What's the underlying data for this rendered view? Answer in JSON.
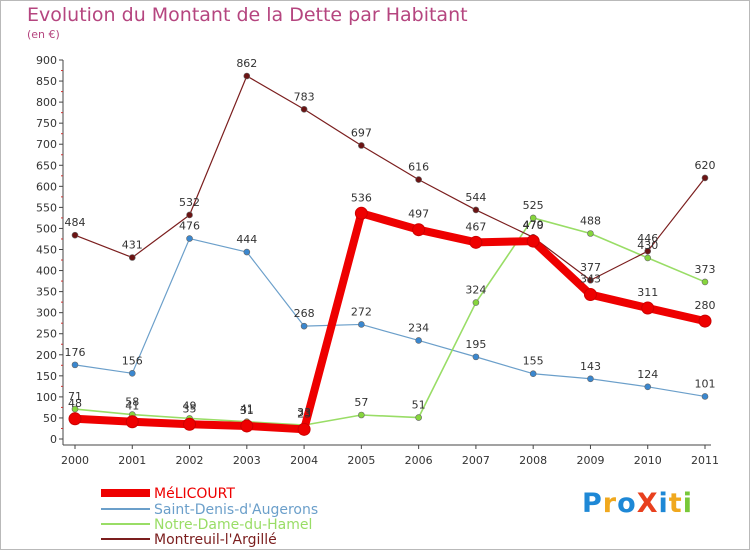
{
  "chart_data": {
    "type": "line",
    "title": "Evolution du Montant de la Dette par Habitant",
    "subtitle": "(en €)",
    "x": [
      "2000",
      "2001",
      "2002",
      "2003",
      "2004",
      "2005",
      "2006",
      "2007",
      "2008",
      "2009",
      "2010",
      "2011"
    ],
    "ylim": [
      0,
      900
    ],
    "yticks": [
      0,
      50,
      100,
      150,
      200,
      250,
      300,
      350,
      400,
      450,
      500,
      550,
      600,
      650,
      700,
      750,
      800,
      850,
      900
    ],
    "grid": false,
    "legend_position": "bottom-left",
    "series": [
      {
        "name": "MéLICOURT",
        "color": "#ee0000",
        "values": [
          48,
          41,
          35,
          31,
          23,
          536,
          497,
          467,
          470,
          343,
          311,
          280
        ]
      },
      {
        "name": "Saint-Denis-d'Augerons",
        "color": "#6b9fca",
        "values": [
          176,
          156,
          476,
          444,
          268,
          272,
          234,
          195,
          155,
          143,
          124,
          101
        ]
      },
      {
        "name": "Notre-Dame-du-Hamel",
        "color": "#99dd66",
        "values": [
          71,
          58,
          49,
          41,
          33,
          57,
          51,
          324,
          525,
          488,
          430,
          373
        ]
      },
      {
        "name": "Montreuil-l'Argillé",
        "color": "#7b1e1e",
        "values": [
          484,
          431,
          532,
          862,
          783,
          697,
          616,
          544,
          479,
          377,
          446,
          620
        ]
      }
    ]
  },
  "logo": {
    "text": "ProXiti",
    "letters": [
      "P",
      "r",
      "o",
      "X",
      "i",
      "t",
      "i"
    ],
    "colors": [
      "#1e88d6",
      "#f0a81e",
      "#1e88d6",
      "#e8401e",
      "#1e88d6",
      "#f0a81e",
      "#78c838"
    ]
  }
}
